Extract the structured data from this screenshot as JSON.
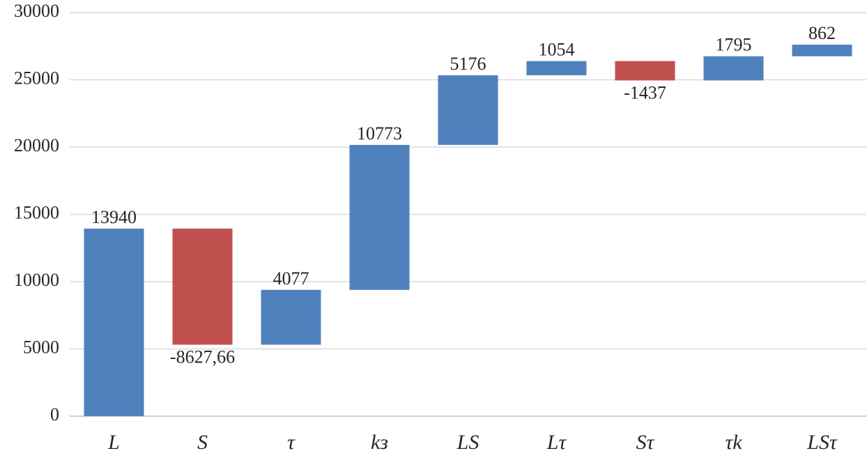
{
  "chart_data": {
    "type": "waterfall",
    "categories": [
      "L",
      "S",
      "τ",
      "kз",
      "LS",
      "Lτ",
      "Sτ",
      "τk",
      "LSτ"
    ],
    "values": [
      13940,
      -8627.66,
      4077,
      10773,
      5176,
      1054,
      -1437,
      1795,
      862
    ],
    "value_labels": [
      "13940",
      "-8627,66",
      "4077",
      "10773",
      "5176",
      "1054",
      "-1437",
      "1795",
      "862"
    ],
    "color": "#4f81bd",
    "negative_color": "#c0504d",
    "ylim": [
      0,
      30000
    ],
    "yticks": [
      0,
      5000,
      10000,
      15000,
      20000,
      25000,
      30000
    ],
    "grid": true
  }
}
